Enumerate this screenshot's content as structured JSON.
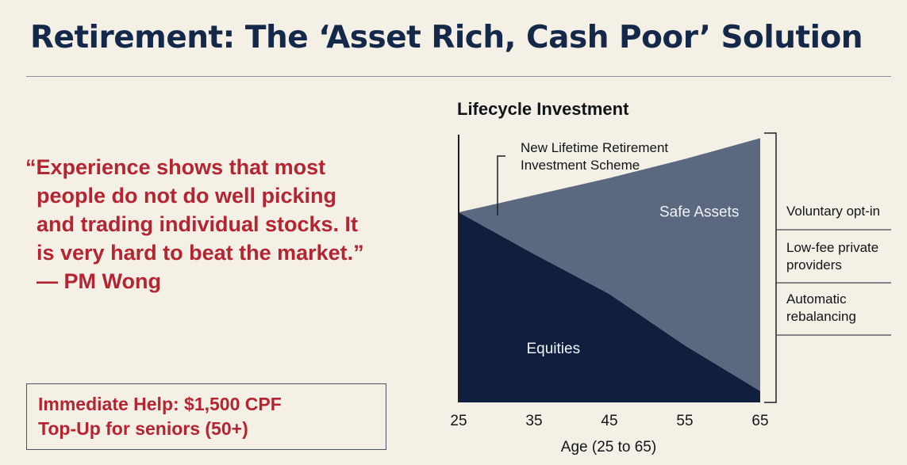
{
  "title": "Retirement: The ‘Asset Rich, Cash Poor’ Solution",
  "quote": {
    "lines": [
      "“Experience shows that most",
      "people do not do well picking",
      "and trading individual stocks. It",
      "is very hard to beat the market.”",
      "— PM Wong"
    ]
  },
  "help_box": {
    "lines": [
      "Immediate Help: $1,500 CPF",
      "Top-Up for seniors (50+)"
    ]
  },
  "chart_data": {
    "type": "area",
    "title": "Lifecycle Investment",
    "xlabel": "Age (25 to 65)",
    "x_ticks": [
      "25",
      "35",
      "45",
      "55",
      "65"
    ],
    "x": [
      25,
      35,
      45,
      55,
      65
    ],
    "xlim": [
      25,
      65
    ],
    "stacked": true,
    "normalized_total": [
      100,
      109,
      118,
      128,
      139
    ],
    "series": [
      {
        "name": "Equities",
        "values": [
          100,
          78,
          57,
          30,
          6
        ],
        "color": "#0f1f3d"
      },
      {
        "name": "Safe Assets",
        "values": [
          0,
          31,
          61,
          98,
          133
        ],
        "color": "#5b6880"
      }
    ],
    "annotation": {
      "lines": [
        "New Lifetime Retirement",
        "Investment Scheme"
      ]
    },
    "features": [
      {
        "lines": [
          "Voluntary opt-in"
        ]
      },
      {
        "lines": [
          "Low-fee private",
          "providers"
        ]
      },
      {
        "lines": [
          "Automatic",
          "rebalancing"
        ]
      }
    ],
    "colors": {
      "text": "#111418",
      "axis": "#1b1f26",
      "divider": "#3d4452"
    }
  }
}
